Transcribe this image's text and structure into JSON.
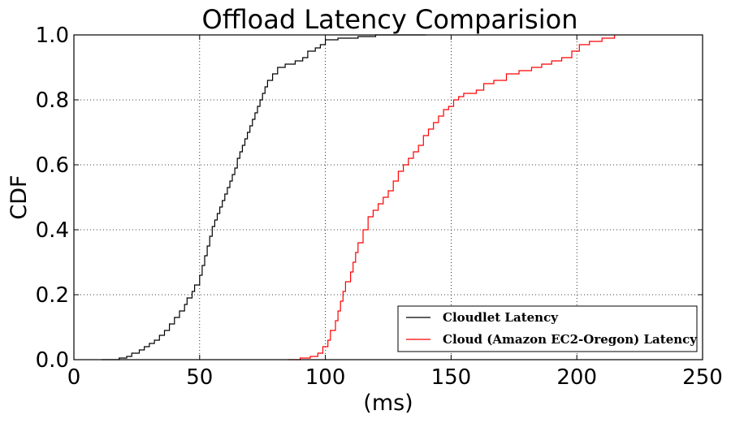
{
  "chart_data": {
    "type": "line",
    "title": "Offload Latency Comparision",
    "xlabel": "(ms)",
    "ylabel": "CDF",
    "xlim": [
      0,
      250
    ],
    "ylim": [
      0,
      1.0
    ],
    "x_ticks": [
      "0",
      "50",
      "100",
      "150",
      "200",
      "250"
    ],
    "y_ticks": [
      "0.0",
      "0.2",
      "0.4",
      "0.6",
      "0.8",
      "1.0"
    ],
    "grid": true,
    "legend_position": "lower-right",
    "series": [
      {
        "name": "Cloudlet Latency",
        "color": "#000000",
        "x": [
          11,
          18,
          21,
          23,
          26,
          28,
          30,
          32,
          34,
          36,
          38,
          40,
          42,
          44,
          45,
          47,
          48,
          50,
          51,
          52,
          53,
          54,
          55,
          56,
          57,
          58,
          59,
          60,
          61,
          62,
          63,
          64,
          65,
          66,
          67,
          68,
          69,
          70,
          71,
          72,
          73,
          74,
          75,
          76,
          77,
          79,
          81,
          84,
          88,
          91,
          93,
          96,
          98,
          100,
          105,
          110,
          113,
          120,
          130,
          140
        ],
        "y": [
          0.0,
          0.005,
          0.01,
          0.02,
          0.03,
          0.04,
          0.05,
          0.06,
          0.075,
          0.09,
          0.11,
          0.13,
          0.15,
          0.17,
          0.19,
          0.21,
          0.23,
          0.26,
          0.29,
          0.32,
          0.35,
          0.38,
          0.41,
          0.43,
          0.45,
          0.47,
          0.49,
          0.51,
          0.53,
          0.55,
          0.57,
          0.59,
          0.62,
          0.64,
          0.66,
          0.68,
          0.7,
          0.72,
          0.74,
          0.76,
          0.78,
          0.8,
          0.82,
          0.84,
          0.86,
          0.88,
          0.9,
          0.91,
          0.92,
          0.93,
          0.95,
          0.96,
          0.97,
          0.985,
          0.99,
          0.99,
          0.995,
          1.0,
          1.0,
          1.0
        ]
      },
      {
        "name": "Cloud (Amazon EC2-Oregon) Latency",
        "color": "#ff0000",
        "x": [
          85,
          90,
          94,
          97,
          99,
          101,
          102,
          104,
          105,
          106,
          107,
          108,
          110,
          111,
          112,
          113,
          115,
          117,
          119,
          121,
          123,
          125,
          127,
          129,
          131,
          133,
          135,
          137,
          139,
          141,
          143,
          145,
          147,
          149,
          151,
          153,
          155,
          160,
          163,
          167,
          172,
          177,
          182,
          186,
          190,
          194,
          198,
          201,
          205,
          210,
          215
        ],
        "y": [
          0.0,
          0.005,
          0.01,
          0.02,
          0.04,
          0.06,
          0.09,
          0.12,
          0.15,
          0.18,
          0.21,
          0.24,
          0.27,
          0.3,
          0.33,
          0.36,
          0.4,
          0.44,
          0.46,
          0.48,
          0.5,
          0.52,
          0.55,
          0.58,
          0.6,
          0.62,
          0.64,
          0.66,
          0.69,
          0.71,
          0.73,
          0.75,
          0.77,
          0.78,
          0.8,
          0.81,
          0.82,
          0.83,
          0.85,
          0.86,
          0.88,
          0.89,
          0.9,
          0.91,
          0.92,
          0.93,
          0.95,
          0.97,
          0.98,
          0.99,
          1.0
        ]
      }
    ]
  }
}
